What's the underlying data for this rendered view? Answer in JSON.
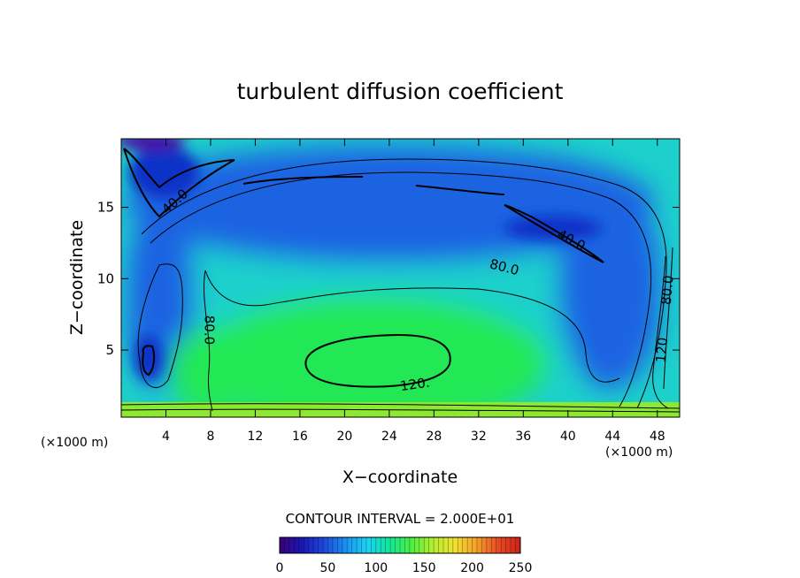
{
  "chart_data": {
    "type": "heatmap",
    "title": "turbulent diffusion coefficient",
    "xlabel": "X−coordinate",
    "ylabel": "Z−coordinate",
    "x_unit_left": "(×1000 m)",
    "x_unit_right": "(×1000 m)",
    "xlim": [
      0,
      50
    ],
    "ylim": [
      0.3,
      19.8
    ],
    "x_ticks": [
      "4",
      "8",
      "12",
      "16",
      "20",
      "24",
      "28",
      "32",
      "36",
      "40",
      "44",
      "48"
    ],
    "y_ticks": [
      "5",
      "10",
      "15"
    ],
    "contour_interval_text": "CONTOUR INTERVAL = 2.000E+01",
    "contour_labels": [
      {
        "text": "40.0",
        "x": 4.8,
        "z": 15.4,
        "rotate": -42
      },
      {
        "text": "40.0",
        "x": 40.3,
        "z": 12.7,
        "rotate": 28
      },
      {
        "text": "80.0",
        "x": 34.3,
        "z": 10.8,
        "rotate": 14
      },
      {
        "text": "80.0",
        "x": 7.9,
        "z": 6.4,
        "rotate": 90
      },
      {
        "text": "80.0",
        "x": 48.9,
        "z": 9.2,
        "rotate": -85
      },
      {
        "text": "120.",
        "x": 26.3,
        "z": 2.6,
        "rotate": -8
      },
      {
        "text": "120",
        "x": 48.4,
        "z": 5.0,
        "rotate": -85
      }
    ],
    "colorbar": {
      "min": 0,
      "max": 250,
      "ticks": [
        "0",
        "50",
        "100",
        "150",
        "200",
        "250"
      ],
      "colors": [
        "#3a007a",
        "#1a16b4",
        "#1e46dc",
        "#1a90f0",
        "#1cd2f4",
        "#10e89a",
        "#4cee42",
        "#b4ee30",
        "#f0e030",
        "#f4a028",
        "#e84a22",
        "#d02018"
      ]
    },
    "field_colors": {
      "high": "#22e855",
      "medium": "#1ed0cc",
      "low": "#1a64e2",
      "very_low": "#1030c8",
      "minimum": "#4a0aa2",
      "boundary": "#8ce830"
    }
  }
}
